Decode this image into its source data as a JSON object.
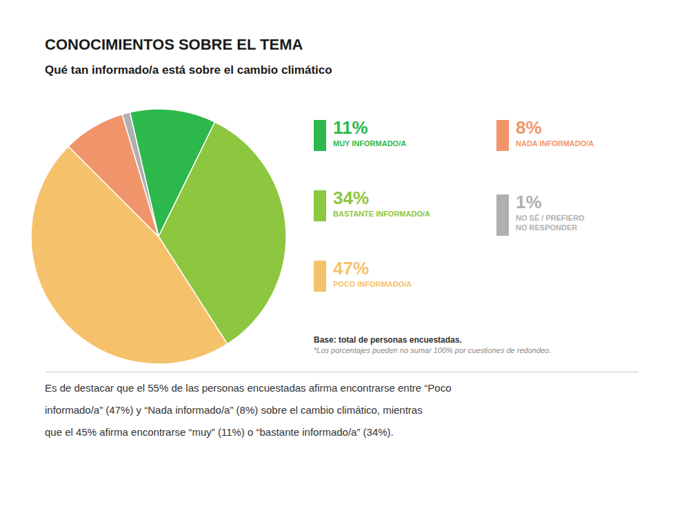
{
  "chart_data": {
    "type": "pie",
    "title": "CONOCIMIENTOS SOBRE EL TEMA",
    "subtitle": "Qué tan informado/a está sobre el cambio climático",
    "categories": [
      "MUY INFORMADO/A",
      "BASTANTE INFORMADO/A",
      "POCO INFORMADO/A",
      "NADA INFORMADO/A",
      "NO SÉ / PREFIERO\nNO RESPONDER"
    ],
    "values": [
      11,
      34,
      47,
      8,
      1
    ],
    "value_labels": [
      "11%",
      "34%",
      "47%",
      "8%",
      "1%"
    ],
    "colors": [
      "#2db84b",
      "#8dc63f",
      "#f5c26b",
      "#f0956a",
      "#b0b0b0"
    ],
    "legend": "right",
    "annotations": [
      "Base: total de personas encuestadas.",
      "*Los porcentajes pueden no sumar 100% por cuestiones de redondeo.",
      "Es de destacar que el 55% de las personas encuestadas afirma encontrarse entre “Poco",
      "informado/a” (47%) y “Nada informado/a” (8%) sobre el cambio climático, mientras",
      "que el 45% afirma encontrarse “muy” (11%) o “bastante informado/a” (34%)."
    ]
  }
}
